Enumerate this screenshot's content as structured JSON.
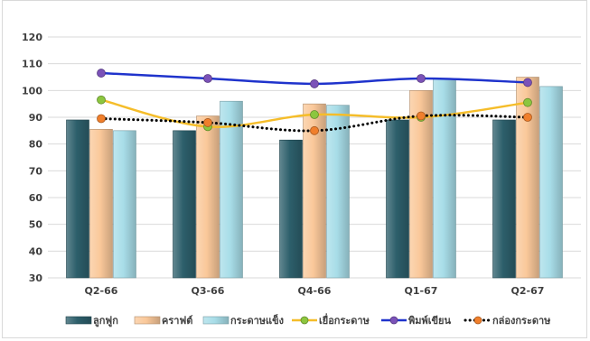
{
  "chart_data": {
    "type": "bar",
    "categories": [
      "Q2-66",
      "Q3-66",
      "Q4-66",
      "Q1-67",
      "Q2-67"
    ],
    "ylim": [
      30,
      120
    ],
    "yticks": [
      30,
      40,
      50,
      60,
      70,
      80,
      90,
      100,
      110,
      120
    ],
    "grid": true,
    "legend_position": "bottom",
    "series": [
      {
        "name": "ลูกฟูก",
        "kind": "bar",
        "color": "#2d5f6b",
        "values": [
          89,
          85,
          81.5,
          89,
          89
        ]
      },
      {
        "name": "คราฟต์",
        "kind": "bar",
        "color": "#fac89a",
        "values": [
          85.5,
          90.5,
          95,
          100,
          105
        ]
      },
      {
        "name": "กระดาษแข็ง",
        "kind": "bar",
        "color": "#a8dde8",
        "values": [
          85,
          96,
          94.5,
          104.5,
          101.5
        ]
      },
      {
        "name": "เยื่อกระดาษ",
        "kind": "line",
        "style": "solid",
        "color": "#f5bd2a",
        "marker": "#8cc63f",
        "values": [
          96.5,
          86.5,
          91,
          90,
          95.5
        ]
      },
      {
        "name": "พิมพ์เขียน",
        "kind": "line",
        "style": "solid",
        "color": "#1f33cc",
        "marker": "#7b52b8",
        "values": [
          106.5,
          104.5,
          102.5,
          104.5,
          103
        ]
      },
      {
        "name": "กล่องกระดาษ",
        "kind": "line",
        "style": "dotted",
        "color": "#000000",
        "marker": "#f07f2c",
        "values": [
          89.5,
          88,
          85,
          90.5,
          90
        ]
      }
    ]
  }
}
